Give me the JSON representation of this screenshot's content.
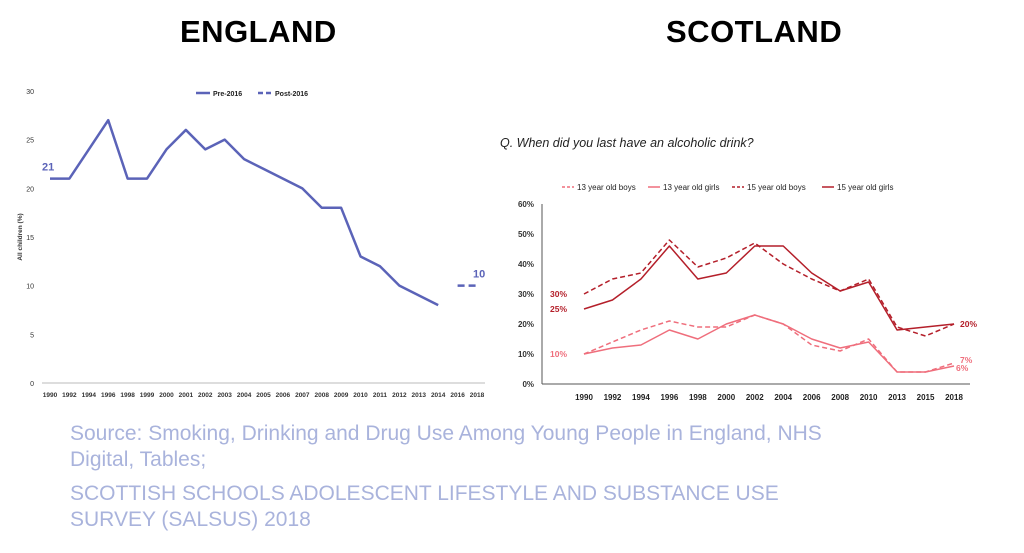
{
  "titles": {
    "england": "ENGLAND",
    "scotland": "SCOTLAND"
  },
  "question": "Q. When did you last have an alcoholic drink?",
  "source": [
    "Source: Smoking, Drinking and Drug Use Among Young People in England, NHS",
    "Digital, Tables;",
    "SCOTTISH SCHOOLS ADOLESCENT LIFESTYLE AND SUBSTANCE USE",
    "SURVEY (SALSUS) 2018"
  ],
  "colors": {
    "england": "#5b63b8",
    "scotland_dark": "#b41f2a",
    "scotland_light": "#ef6e7c",
    "source_text": "#a9b3dc"
  },
  "chart_data": [
    {
      "type": "line",
      "title": "ENGLAND",
      "ylabel": "All children (%)",
      "xlabel": "",
      "ylim": [
        0,
        30
      ],
      "yticks": [
        0,
        5,
        10,
        15,
        20,
        25,
        30
      ],
      "categories": [
        "1990",
        "1992",
        "1994",
        "1996",
        "1998",
        "1999",
        "2000",
        "2001",
        "2002",
        "2003",
        "2004",
        "2005",
        "2006",
        "2007",
        "2008",
        "2009",
        "2010",
        "2011",
        "2012",
        "2013",
        "2014",
        "2016",
        "2018"
      ],
      "legend_position": "top-right",
      "series": [
        {
          "name": "Pre-2016",
          "style": "solid",
          "values": [
            21,
            21,
            24,
            27,
            21,
            21,
            24,
            26,
            24,
            25,
            23,
            22,
            21,
            20,
            18,
            18,
            13,
            12,
            10,
            9,
            8,
            null,
            null
          ]
        },
        {
          "name": "Post-2016",
          "style": "dashed",
          "values": [
            null,
            null,
            null,
            null,
            null,
            null,
            null,
            null,
            null,
            null,
            null,
            null,
            null,
            null,
            null,
            null,
            null,
            null,
            null,
            null,
            null,
            10,
            10
          ]
        }
      ],
      "annotations": [
        {
          "category": "1990",
          "value": 21,
          "text": "21"
        },
        {
          "category": "2018",
          "value": 10,
          "text": "10"
        }
      ]
    },
    {
      "type": "line",
      "title": "SCOTLAND",
      "subtitle": "Q. When did you last have an alcoholic drink?",
      "xlabel": "",
      "ylabel": "",
      "ylim": [
        0,
        60
      ],
      "yticks": [
        "0%",
        "10%",
        "20%",
        "30%",
        "40%",
        "50%",
        "60%"
      ],
      "categories": [
        "1990",
        "1992",
        "1994",
        "1996",
        "1998",
        "2000",
        "2002",
        "2004",
        "2006",
        "2008",
        "2010",
        "2013",
        "2015",
        "2018"
      ],
      "legend_position": "top",
      "series": [
        {
          "name": "13 year old boys",
          "style": "dashed",
          "color": "#ef6e7c",
          "values": [
            10,
            14,
            18,
            21,
            19,
            19,
            23,
            20,
            13,
            11,
            15,
            4,
            4,
            7
          ]
        },
        {
          "name": "13 year old girls",
          "style": "solid",
          "color": "#ef6e7c",
          "values": [
            10,
            12,
            13,
            18,
            15,
            20,
            23,
            20,
            15,
            12,
            14,
            4,
            4,
            6
          ]
        },
        {
          "name": "15 year old boys",
          "style": "dashed",
          "color": "#b41f2a",
          "values": [
            30,
            35,
            37,
            48,
            39,
            42,
            47,
            40,
            35,
            31,
            35,
            19,
            16,
            20
          ]
        },
        {
          "name": "15 year old girls",
          "style": "solid",
          "color": "#b41f2a",
          "values": [
            25,
            28,
            35,
            46,
            35,
            37,
            46,
            46,
            37,
            31,
            34,
            18,
            19,
            20
          ]
        }
      ],
      "annotations": [
        {
          "text": "30%",
          "category": "1990",
          "value": 30
        },
        {
          "text": "25%",
          "category": "1990",
          "value": 25
        },
        {
          "text": "10%",
          "category": "1990",
          "value": 10
        },
        {
          "text": "20%",
          "category": "2018",
          "value": 20
        },
        {
          "text": "7%",
          "category": "2018",
          "value": 7
        },
        {
          "text": "6%",
          "category": "2018",
          "value": 6
        }
      ]
    }
  ]
}
